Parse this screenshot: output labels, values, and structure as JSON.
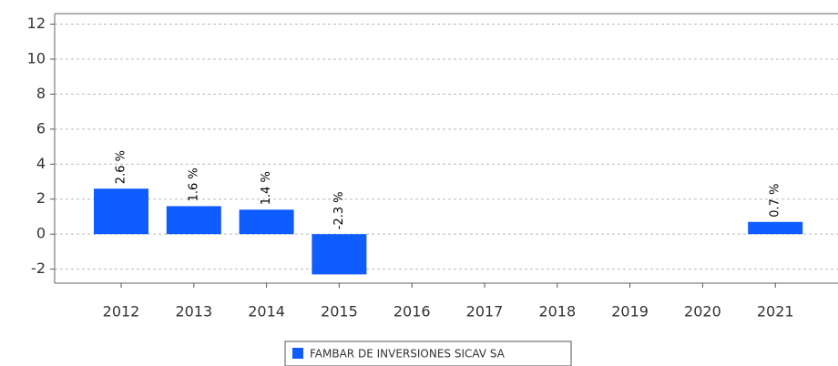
{
  "chart_data": {
    "type": "bar",
    "categories": [
      "2012",
      "2013",
      "2014",
      "2015",
      "2016",
      "2017",
      "2018",
      "2019",
      "2020",
      "2021"
    ],
    "series": [
      {
        "name": "FAMBAR DE INVERSIONES SICAV SA",
        "color": "#0f5cff",
        "values": [
          2.6,
          1.6,
          1.4,
          -2.3,
          null,
          null,
          null,
          null,
          null,
          0.7
        ],
        "value_labels": [
          "2.6 %",
          "1.6 %",
          "1.4 %",
          "-2.3 %",
          null,
          null,
          null,
          null,
          null,
          "0.7 %"
        ]
      }
    ],
    "ylim": [
      -2.8,
      12.6
    ],
    "yticks": [
      -2,
      0,
      2,
      4,
      6,
      8,
      10,
      12
    ],
    "grid": true
  }
}
